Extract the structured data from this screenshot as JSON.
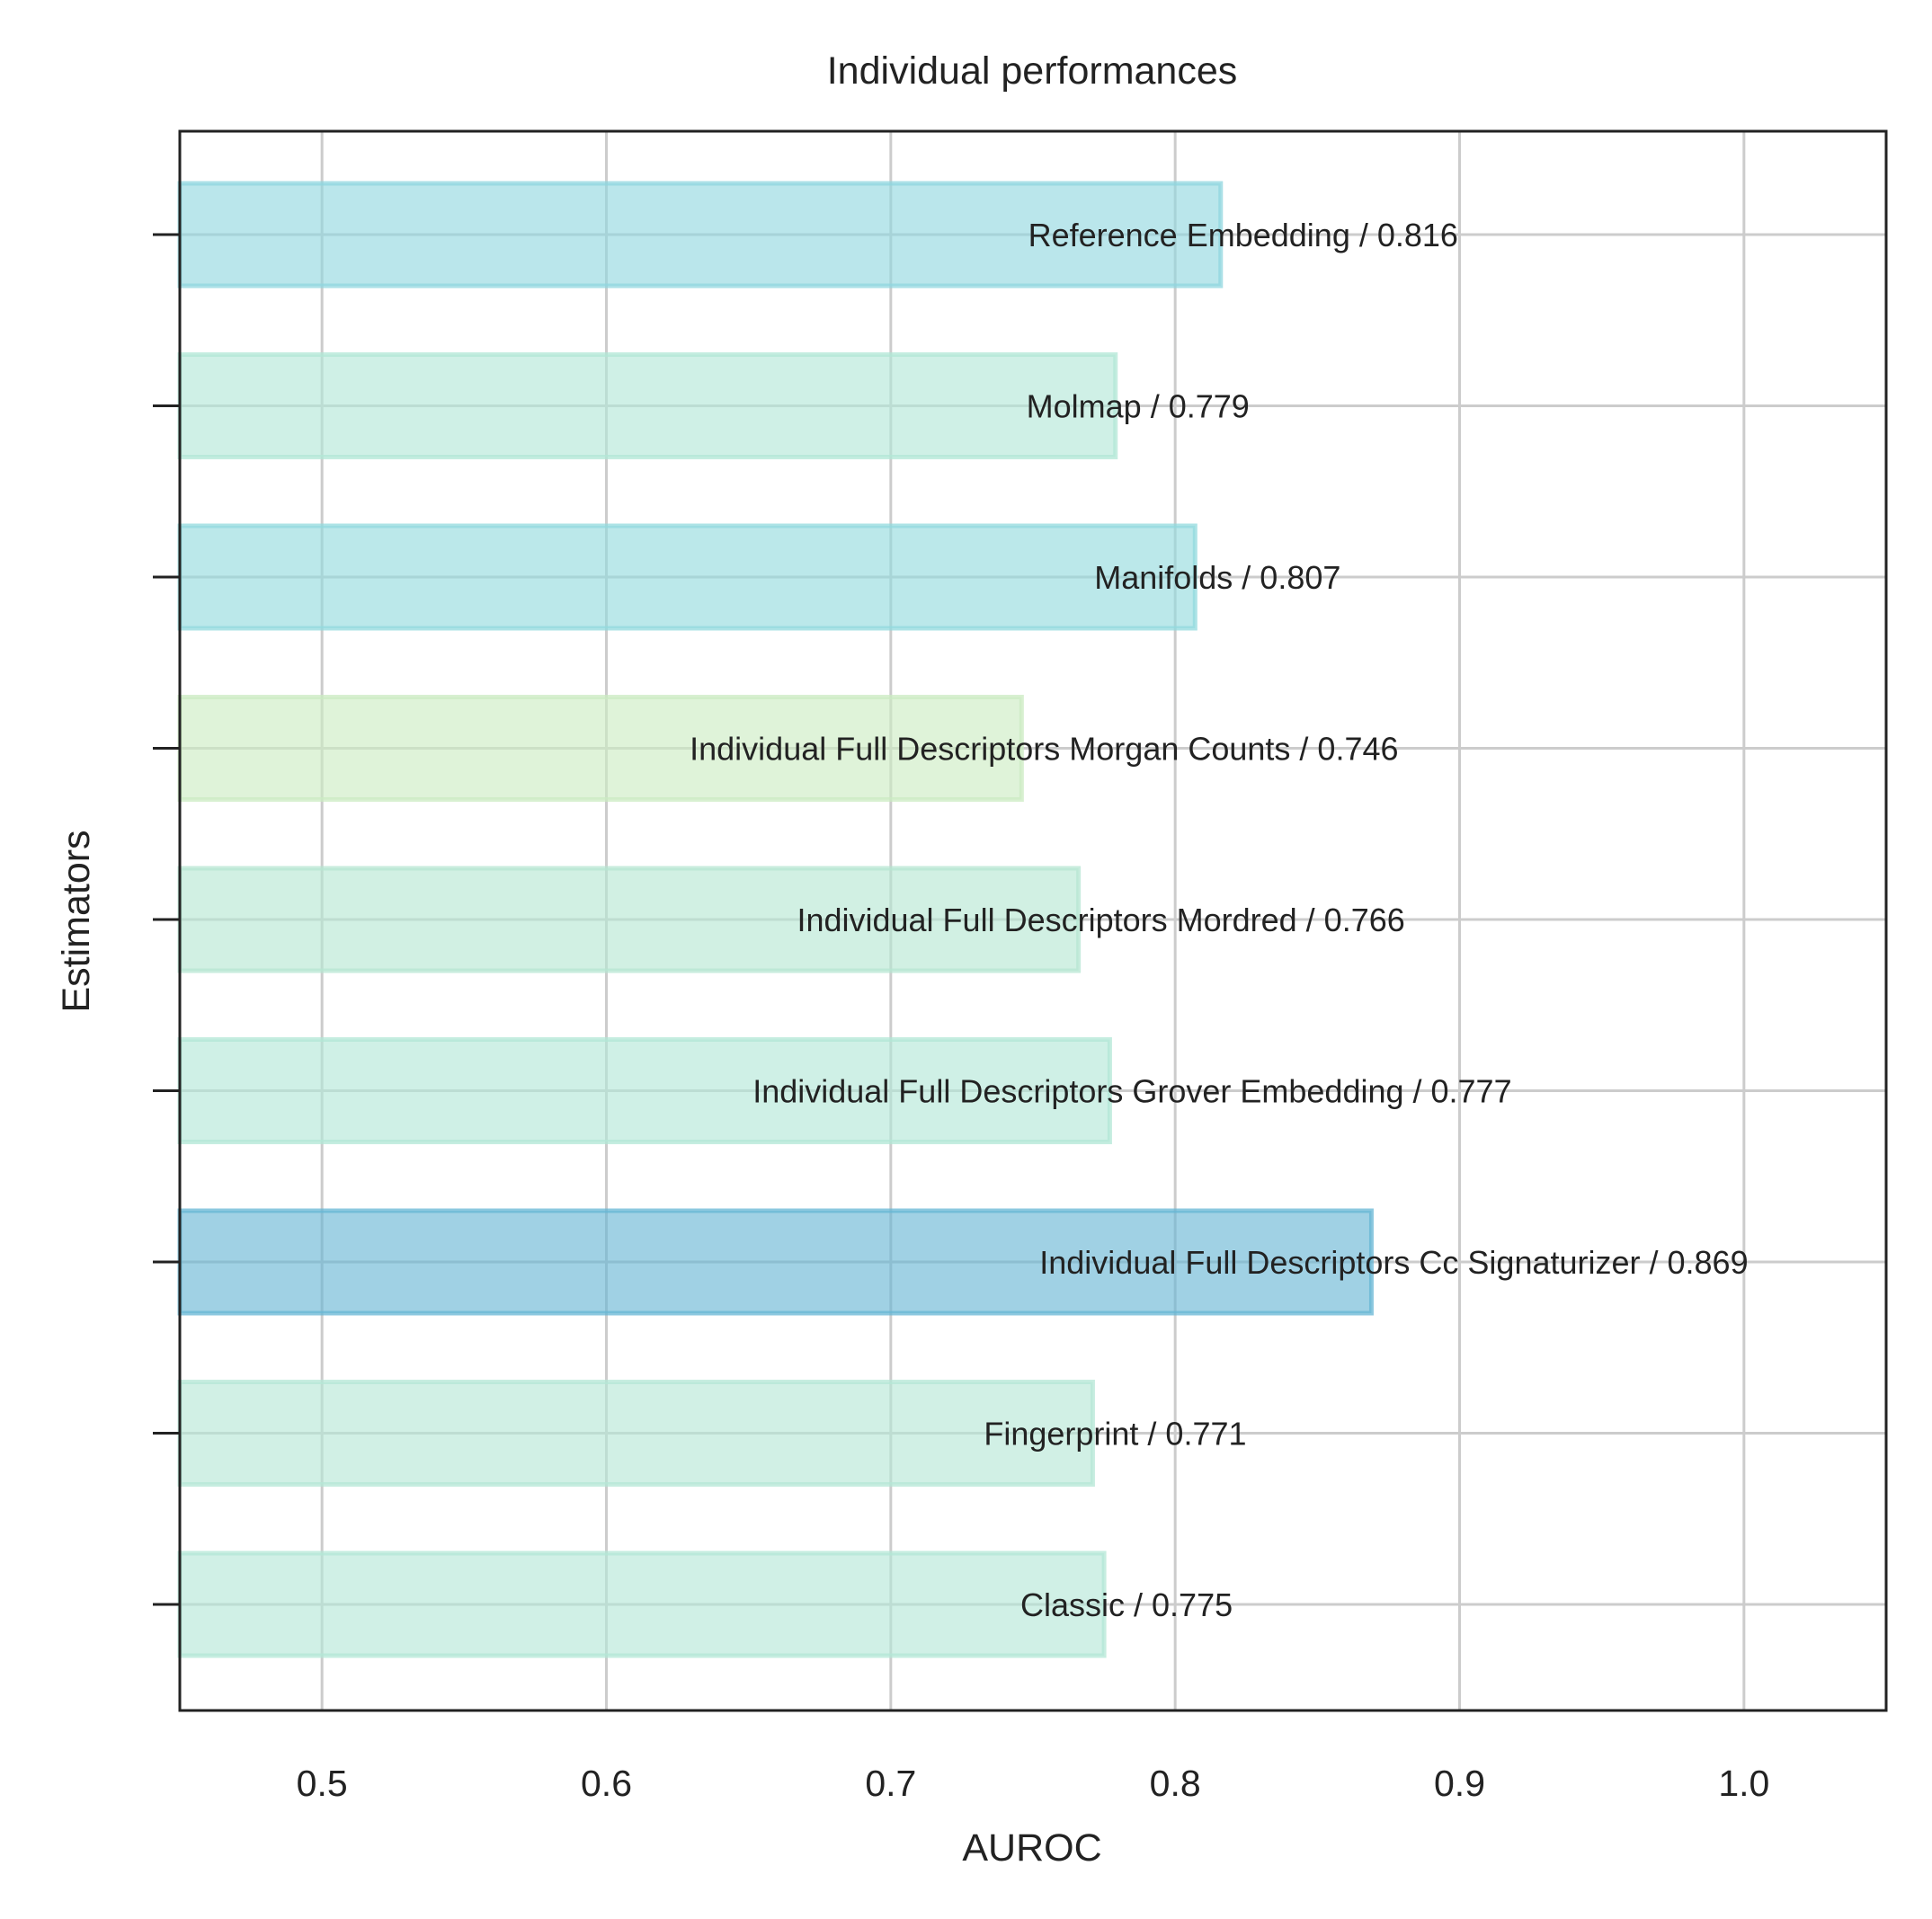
{
  "chart_data": {
    "type": "bar",
    "orientation": "horizontal",
    "title": "Individual performances",
    "xlabel": "AUROC",
    "ylabel": "Estimators",
    "xlim": [
      0.45,
      1.05
    ],
    "xticks": [
      0.5,
      0.6,
      0.7,
      0.8,
      0.9,
      1.0
    ],
    "xtick_labels": [
      "0.5",
      "0.6",
      "0.7",
      "0.8",
      "0.9",
      "1.0"
    ],
    "grid": true,
    "bars": [
      {
        "name": "Reference Embedding",
        "value": 0.816,
        "label": "Reference Embedding / 0.816",
        "color": "#8fd6df"
      },
      {
        "name": "Molmap",
        "value": 0.779,
        "label": "Molmap / 0.779",
        "color": "#b2e7d6"
      },
      {
        "name": "Manifolds",
        "value": 0.807,
        "label": "Manifolds / 0.807",
        "color": "#92dadd"
      },
      {
        "name": "Individual Full Descriptors Morgan Counts",
        "value": 0.746,
        "label": "Individual Full Descriptors Morgan Counts / 0.746",
        "color": "#cbebc2"
      },
      {
        "name": "Individual Full Descriptors Mordred",
        "value": 0.766,
        "label": "Individual Full Descriptors Mordred / 0.766",
        "color": "#b5e6d2"
      },
      {
        "name": "Individual Full Descriptors Grover Embedding",
        "value": 0.777,
        "label": "Individual Full Descriptors Grover Embedding / 0.777",
        "color": "#b2e7d6"
      },
      {
        "name": "Individual Full Descriptors Cc Signaturizer",
        "value": 0.869,
        "label": "Individual Full Descriptors Cc Signaturizer / 0.869",
        "color": "#66b5d4"
      },
      {
        "name": "Fingerprint",
        "value": 0.771,
        "label": "Fingerprint / 0.771",
        "color": "#b4e7d5"
      },
      {
        "name": "Classic",
        "value": 0.775,
        "label": "Classic / 0.775",
        "color": "#b3e7d6"
      }
    ]
  }
}
